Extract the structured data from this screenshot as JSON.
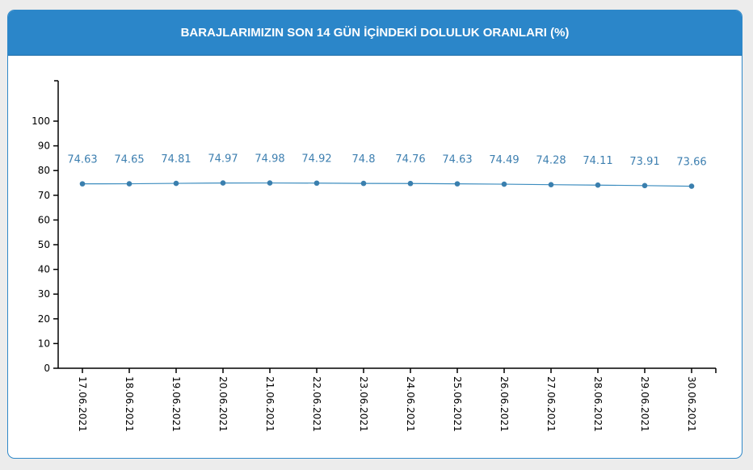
{
  "card": {
    "title": "BARAJLARIMIZIN SON 14 GÜN İÇİNDEKİ DOLULUK ORANLARI (%)"
  },
  "chart_data": {
    "type": "line",
    "title": "BARAJLARIMIZIN SON 14 GÜN İÇİNDEKİ DOLULUK ORANLARI (%)",
    "xlabel": "",
    "ylabel": "",
    "ylim": [
      0,
      100
    ],
    "y_ticks": [
      "0",
      "10",
      "20",
      "30",
      "40",
      "50",
      "60",
      "70",
      "80",
      "90",
      "100"
    ],
    "categories": [
      "17.06.2021",
      "18.06.2021",
      "19.06.2021",
      "20.06.2021",
      "21.06.2021",
      "22.06.2021",
      "23.06.2021",
      "24.06.2021",
      "25.06.2021",
      "26.06.2021",
      "27.06.2021",
      "28.06.2021",
      "29.06.2021",
      "30.06.2021"
    ],
    "values": [
      74.63,
      74.65,
      74.81,
      74.97,
      74.98,
      74.92,
      74.8,
      74.76,
      74.63,
      74.49,
      74.28,
      74.11,
      73.91,
      73.66
    ],
    "value_labels": [
      "74.63",
      "74.65",
      "74.81",
      "74.97",
      "74.98",
      "74.92",
      "74.8",
      "74.76",
      "74.63",
      "74.49",
      "74.28",
      "74.11",
      "73.91",
      "73.66"
    ],
    "grid": false,
    "legend": "none",
    "colors": {
      "line": "#3d8dbf",
      "point": "#3a7fae",
      "label": "#3d7fb0",
      "axis": "#000000",
      "header": "#2b86c9"
    }
  }
}
